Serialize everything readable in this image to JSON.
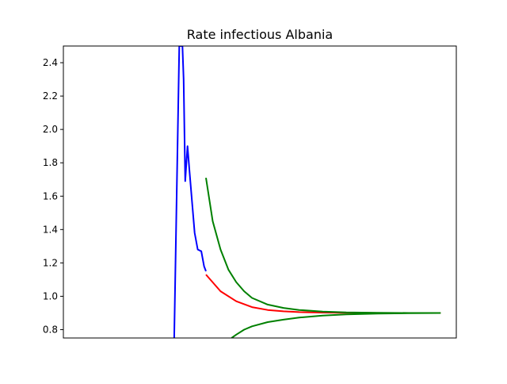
{
  "chart_data": {
    "type": "line",
    "title": "Rate infectious Albania",
    "xlabel": "",
    "ylabel": "",
    "ylim": [
      0.75,
      2.5
    ],
    "xlim": [
      0,
      100
    ],
    "x_ticks_shown": false,
    "y_ticks": [
      "0.8",
      "1.0",
      "1.2",
      "1.4",
      "1.6",
      "1.8",
      "2.0",
      "2.2",
      "2.4"
    ],
    "y_tick_values": [
      0.8,
      1.0,
      1.2,
      1.4,
      1.6,
      1.8,
      2.0,
      2.2,
      2.4
    ],
    "grid": false,
    "legend": "none",
    "series": [
      {
        "color": "#0000ff",
        "x": [
          28.2,
          29.5,
          30.3,
          30.6,
          31.0,
          31.6,
          32.1,
          32.8,
          33.4,
          34.2,
          35.1,
          35.8,
          36.3
        ],
        "y": [
          0.75,
          2.5,
          2.5,
          2.3,
          1.69,
          1.9,
          1.75,
          1.55,
          1.38,
          1.28,
          1.27,
          1.18,
          1.15
        ]
      },
      {
        "color": "#ff0000",
        "x": [
          36.3,
          40,
          44,
          48,
          52,
          56,
          60,
          66,
          72,
          80,
          88,
          96
        ],
        "y": [
          1.13,
          1.03,
          0.97,
          0.935,
          0.918,
          0.91,
          0.905,
          0.902,
          0.901,
          0.9,
          0.9,
          0.9
        ]
      },
      {
        "color": "#008000",
        "x": [
          36.3,
          38,
          40,
          42,
          44,
          46,
          48,
          52,
          56,
          60,
          66,
          72,
          80,
          88,
          96
        ],
        "y": [
          1.71,
          1.45,
          1.28,
          1.16,
          1.085,
          1.03,
          0.99,
          0.95,
          0.93,
          0.918,
          0.908,
          0.903,
          0.901,
          0.9,
          0.9
        ]
      },
      {
        "color": "#008000",
        "x": [
          42.8,
          44,
          46,
          48,
          52,
          56,
          60,
          66,
          72,
          80,
          88,
          96
        ],
        "y": [
          0.75,
          0.77,
          0.8,
          0.82,
          0.845,
          0.86,
          0.872,
          0.884,
          0.891,
          0.896,
          0.899,
          0.9
        ]
      }
    ]
  }
}
